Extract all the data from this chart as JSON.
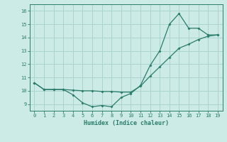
{
  "xlabel": "Humidex (Indice chaleur)",
  "x": [
    0,
    1,
    2,
    3,
    4,
    5,
    6,
    7,
    8,
    9,
    10,
    11,
    12,
    13,
    14,
    15,
    16,
    17,
    18,
    19
  ],
  "line1_y": [
    10.6,
    10.1,
    10.1,
    10.1,
    9.7,
    9.1,
    8.8,
    8.9,
    8.8,
    9.5,
    9.8,
    10.4,
    11.9,
    13.0,
    15.0,
    15.8,
    14.7,
    14.7,
    14.2,
    14.2
  ],
  "line2_y": [
    10.6,
    10.1,
    10.1,
    10.1,
    10.05,
    10.0,
    10.0,
    9.95,
    9.95,
    9.9,
    9.9,
    10.35,
    11.1,
    11.8,
    12.5,
    13.2,
    13.5,
    13.85,
    14.1,
    14.2
  ],
  "line_color": "#2a7d6a",
  "bg_color": "#cceae6",
  "grid_color": "#aad4cf",
  "ylim": [
    8.5,
    16.5
  ],
  "yticks": [
    9,
    10,
    11,
    12,
    13,
    14,
    15,
    16
  ],
  "xticks": [
    0,
    1,
    2,
    3,
    4,
    5,
    6,
    7,
    8,
    9,
    10,
    11,
    12,
    13,
    14,
    15,
    16,
    17,
    18,
    19
  ],
  "xlim": [
    -0.5,
    19.5
  ]
}
